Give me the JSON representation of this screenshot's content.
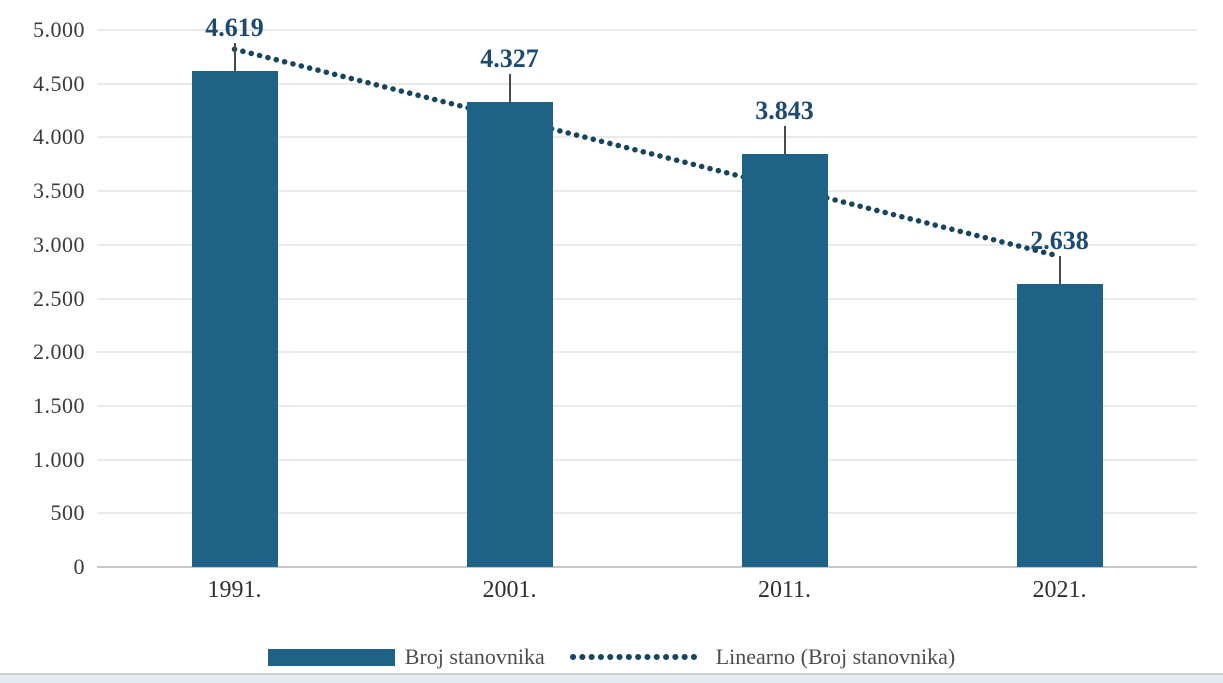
{
  "chart_data": {
    "type": "bar",
    "title": "",
    "categories": [
      "1991.",
      "2001.",
      "2011.",
      "2021."
    ],
    "series": [
      {
        "name": "Broj stanovnika",
        "values": [
          4619,
          4327,
          3843,
          2638
        ]
      }
    ],
    "data_labels": [
      "4.619",
      "4.327",
      "3.843",
      "2.638"
    ],
    "trendline": {
      "name": "Linearno (Broj stanovnika)",
      "style": "dotted",
      "start_value": 4821,
      "end_value": 2893
    },
    "y_axis": {
      "min": 0,
      "max": 5000,
      "step": 500,
      "tick_labels": [
        "5.000",
        "4.500",
        "4.000",
        "3.500",
        "3.000",
        "2.500",
        "2.000",
        "1.500",
        "1.000",
        "500",
        "0"
      ]
    },
    "x_axis": {
      "tick_labels": [
        "1991.",
        "2001.",
        "2011.",
        "2021."
      ]
    },
    "grid": true,
    "legend_position": "bottom",
    "colors": {
      "bar": "#1e6385",
      "trend": "#17455f",
      "data_label": "#1d4b70",
      "leader": "#4a4a4a",
      "axis_text": "#3a3a3a",
      "legend_text": "#4d4d4d",
      "gridline": "#e9e9e9",
      "axis_line": "#c6c6c6"
    }
  },
  "legend": {
    "items": [
      {
        "label": "Broj stanovnika",
        "type": "bar"
      },
      {
        "label": "Linearno (Broj stanovnika)",
        "type": "dotted-line"
      }
    ]
  }
}
